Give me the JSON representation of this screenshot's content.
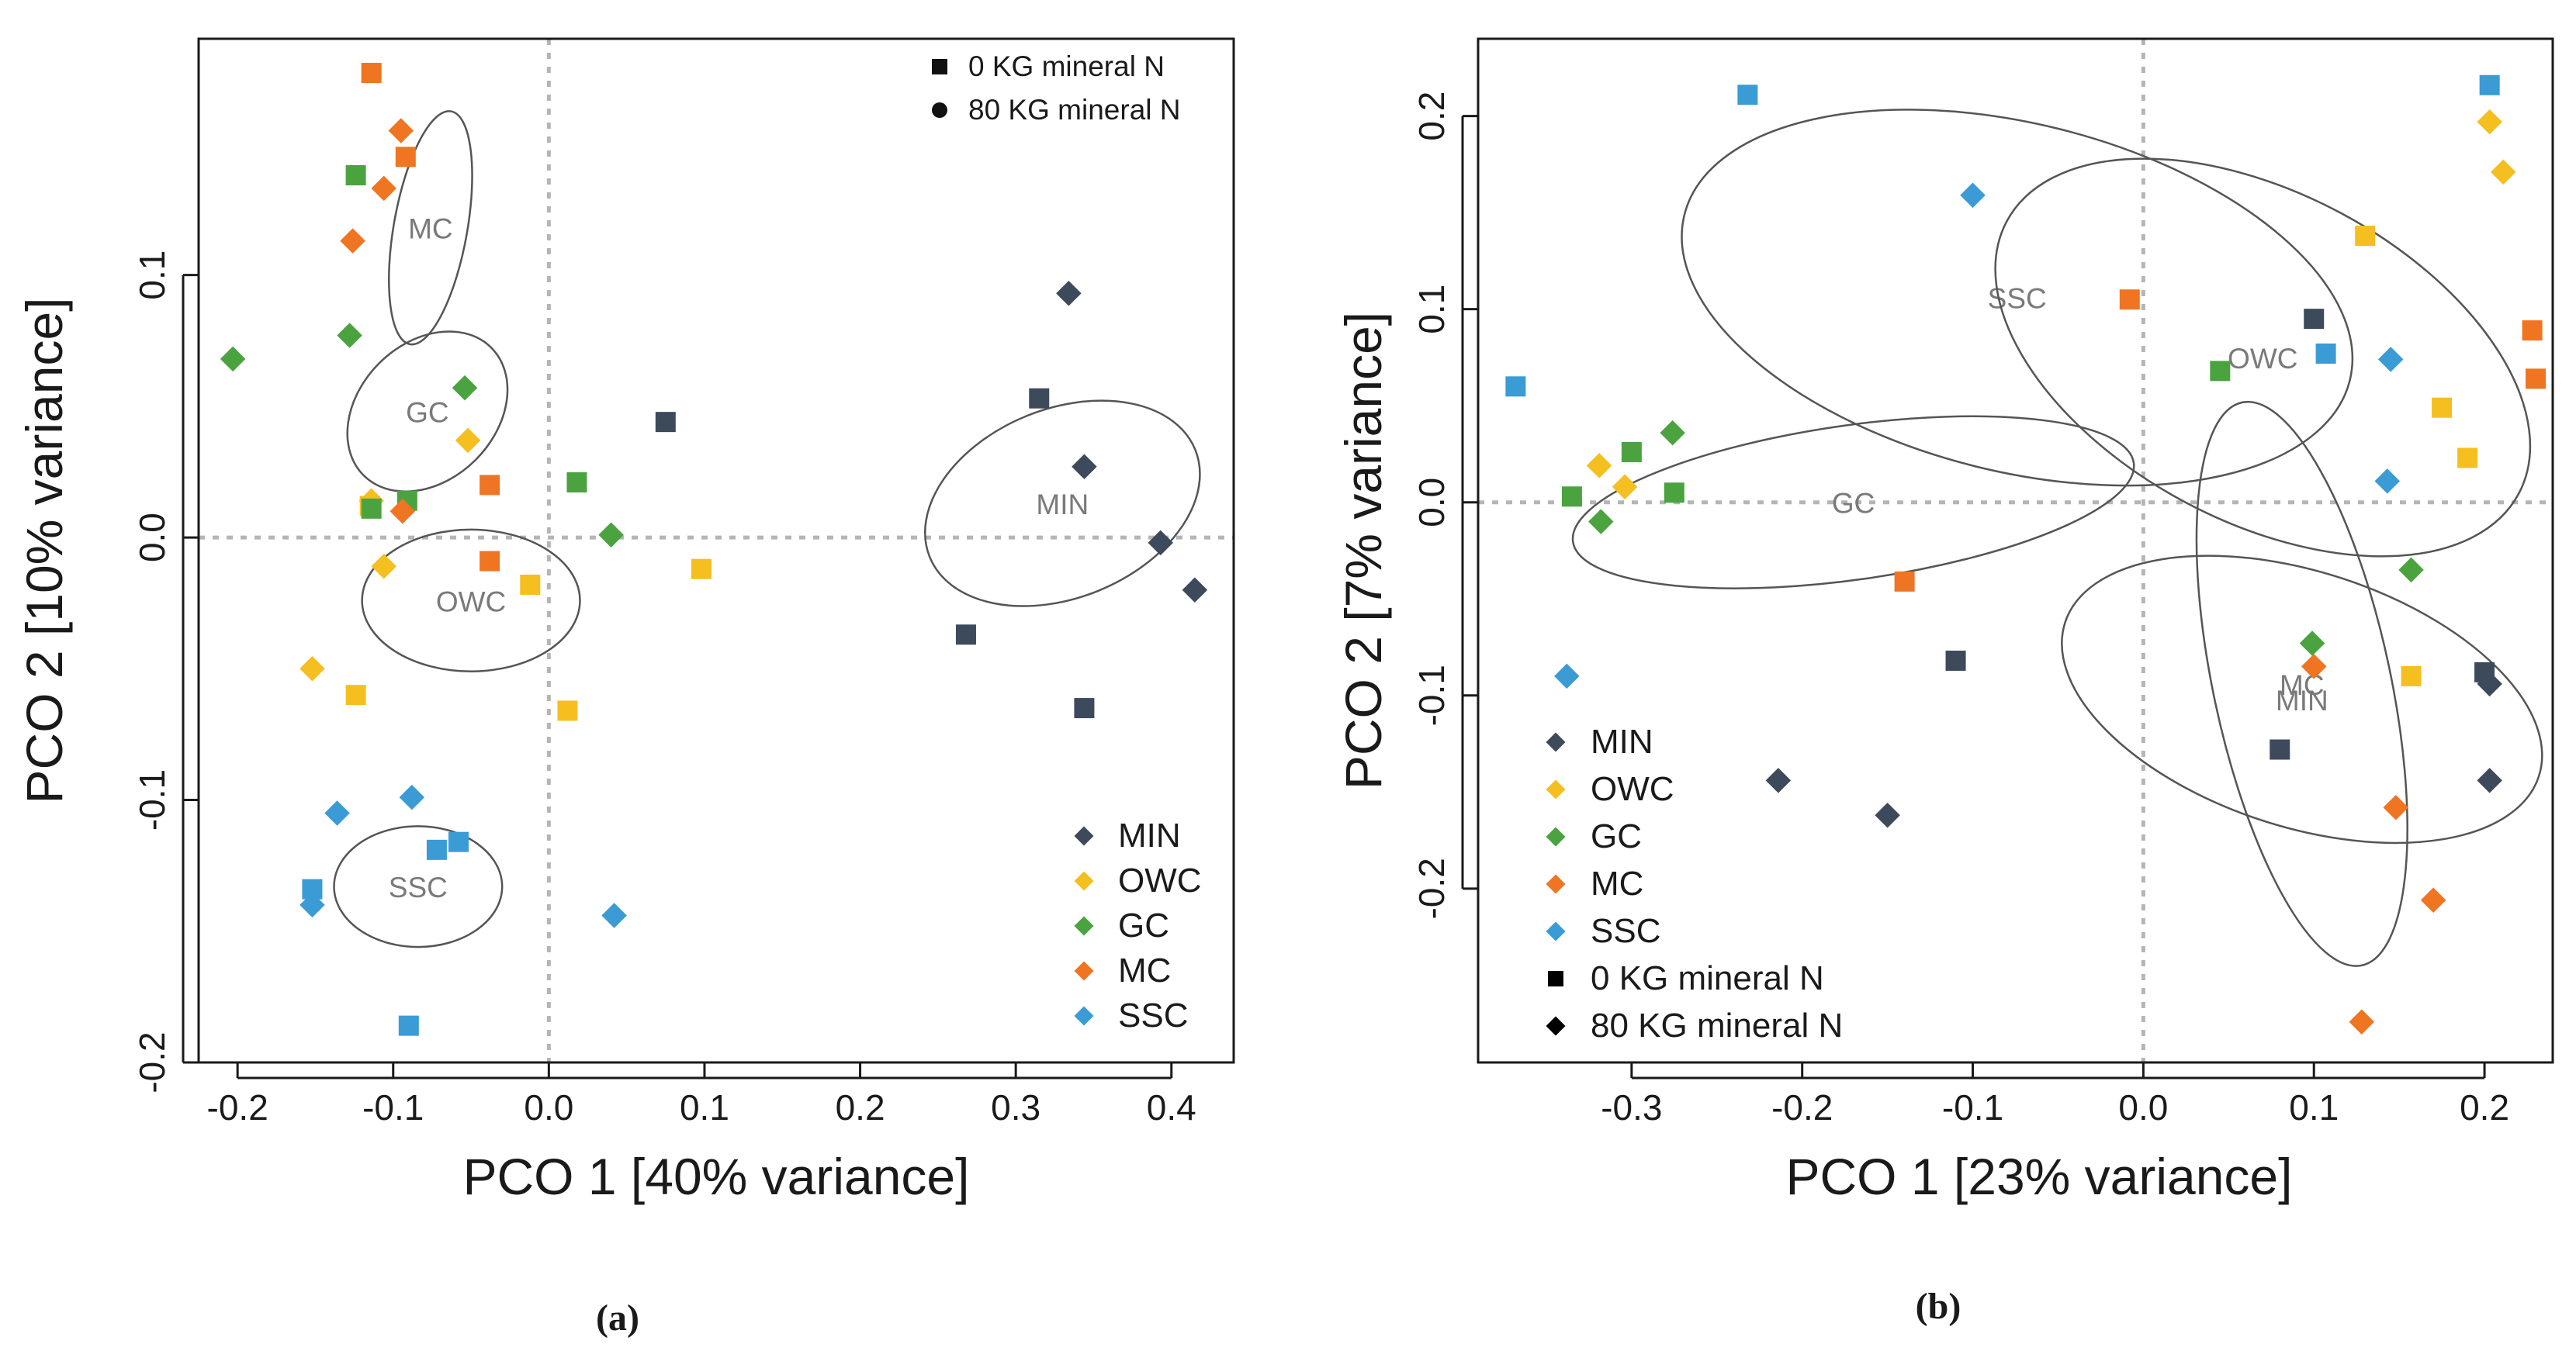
{
  "chart_data": [
    {
      "type": "scatter",
      "panel_label": "(a)",
      "xlabel": "PCO 1 [40% variance]",
      "ylabel": "PCO 2 [10% variance]",
      "xlim": [
        -0.225,
        0.44
      ],
      "ylim": [
        -0.2,
        0.19
      ],
      "xticks": [
        -0.2,
        -0.1,
        0.0,
        0.1,
        0.2,
        0.3,
        0.4
      ],
      "xtick_labels": [
        "-0.2",
        "-0.1",
        "0.0",
        "0.1",
        "0.2",
        "0.3",
        "0.4"
      ],
      "yticks": [
        -0.2,
        -0.1,
        0.0,
        0.1
      ],
      "ytick_labels": [
        "-0.2",
        "-0.1",
        "0.0",
        "0.1"
      ],
      "reference_lines": {
        "x": 0,
        "y": 0,
        "style": "dotted grey"
      },
      "legend_groups": {
        "placement": "bottom-right",
        "entries": [
          {
            "label": "MIN",
            "color": "#3d4a5c"
          },
          {
            "label": "OWC",
            "color": "#f5bf1f"
          },
          {
            "label": "GC",
            "color": "#4aa33f"
          },
          {
            "label": "MC",
            "color": "#ef7522"
          },
          {
            "label": "SSC",
            "color": "#3a9bd5"
          }
        ]
      },
      "legend_treatment": {
        "placement": "top-right",
        "entries": [
          {
            "label": "0 KG mineral N",
            "marker": "square"
          },
          {
            "label": "80 KG mineral N",
            "marker": "circle"
          }
        ]
      },
      "ellipses": [
        {
          "label": "MC",
          "cx": -0.076,
          "cy": 0.118,
          "rx": 0.076,
          "ry": 0.014,
          "angle_deg": -80
        },
        {
          "label": "GC",
          "cx": -0.078,
          "cy": 0.048,
          "rx": 0.058,
          "ry": 0.026,
          "angle_deg": -45
        },
        {
          "label": "OWC",
          "cx": -0.05,
          "cy": -0.024,
          "rx": 0.07,
          "ry": 0.027,
          "angle_deg": 0
        },
        {
          "label": "SSC",
          "cx": -0.084,
          "cy": -0.133,
          "rx": 0.054,
          "ry": 0.023,
          "angle_deg": 0
        },
        {
          "label": "MIN",
          "cx": 0.33,
          "cy": 0.013,
          "rx": 0.092,
          "ry": 0.036,
          "angle_deg": -22
        }
      ],
      "series": [
        {
          "name": "MIN",
          "color": "#3d4a5c",
          "points": [
            {
              "x": 0.075,
              "y": 0.044,
              "n": "0"
            },
            {
              "x": 0.315,
              "y": 0.053,
              "n": "0"
            },
            {
              "x": 0.268,
              "y": -0.037,
              "n": "0"
            },
            {
              "x": 0.344,
              "y": -0.065,
              "n": "0"
            },
            {
              "x": 0.334,
              "y": 0.093,
              "n": "80"
            },
            {
              "x": 0.344,
              "y": 0.027,
              "n": "80"
            },
            {
              "x": 0.393,
              "y": -0.002,
              "n": "80"
            },
            {
              "x": 0.415,
              "y": -0.02,
              "n": "80"
            }
          ]
        },
        {
          "name": "OWC",
          "color": "#f5bf1f",
          "points": [
            {
              "x": -0.115,
              "y": 0.012,
              "n": "0"
            },
            {
              "x": -0.012,
              "y": -0.018,
              "n": "0"
            },
            {
              "x": 0.098,
              "y": -0.012,
              "n": "0"
            },
            {
              "x": -0.124,
              "y": -0.06,
              "n": "0"
            },
            {
              "x": 0.012,
              "y": -0.066,
              "n": "0"
            },
            {
              "x": -0.052,
              "y": 0.037,
              "n": "80"
            },
            {
              "x": -0.114,
              "y": 0.014,
              "n": "80"
            },
            {
              "x": -0.106,
              "y": -0.011,
              "n": "80"
            },
            {
              "x": -0.152,
              "y": -0.05,
              "n": "80"
            }
          ]
        },
        {
          "name": "GC",
          "color": "#4aa33f",
          "points": [
            {
              "x": -0.124,
              "y": 0.138,
              "n": "0"
            },
            {
              "x": -0.091,
              "y": 0.014,
              "n": "0"
            },
            {
              "x": -0.114,
              "y": 0.011,
              "n": "0"
            },
            {
              "x": 0.018,
              "y": 0.021,
              "n": "0"
            },
            {
              "x": -0.203,
              "y": 0.068,
              "n": "80"
            },
            {
              "x": -0.128,
              "y": 0.077,
              "n": "80"
            },
            {
              "x": -0.054,
              "y": 0.057,
              "n": "80"
            },
            {
              "x": 0.04,
              "y": 0.001,
              "n": "80"
            }
          ]
        },
        {
          "name": "MC",
          "color": "#ef7522",
          "points": [
            {
              "x": -0.114,
              "y": 0.177,
              "n": "0"
            },
            {
              "x": -0.092,
              "y": 0.145,
              "n": "0"
            },
            {
              "x": -0.038,
              "y": 0.02,
              "n": "0"
            },
            {
              "x": -0.038,
              "y": -0.009,
              "n": "0"
            },
            {
              "x": -0.095,
              "y": 0.155,
              "n": "80"
            },
            {
              "x": -0.106,
              "y": 0.133,
              "n": "80"
            },
            {
              "x": -0.126,
              "y": 0.113,
              "n": "80"
            },
            {
              "x": -0.094,
              "y": 0.01,
              "n": "80"
            }
          ]
        },
        {
          "name": "SSC",
          "color": "#3a9bd5",
          "points": [
            {
              "x": -0.072,
              "y": -0.119,
              "n": "0"
            },
            {
              "x": -0.058,
              "y": -0.116,
              "n": "0"
            },
            {
              "x": -0.152,
              "y": -0.134,
              "n": "0"
            },
            {
              "x": -0.09,
              "y": -0.186,
              "n": "0"
            },
            {
              "x": -0.136,
              "y": -0.105,
              "n": "80"
            },
            {
              "x": -0.088,
              "y": -0.099,
              "n": "80"
            },
            {
              "x": -0.152,
              "y": -0.14,
              "n": "80"
            },
            {
              "x": 0.042,
              "y": -0.144,
              "n": "80"
            }
          ]
        }
      ]
    },
    {
      "type": "scatter",
      "panel_label": "(b)",
      "xlabel": "PCO 1 [23% variance]",
      "ylabel": "PCO 2 [7% variance]",
      "xlim": [
        -0.39,
        0.24
      ],
      "ylim": [
        -0.29,
        0.24
      ],
      "xticks": [
        -0.3,
        -0.2,
        -0.1,
        0.0,
        0.1,
        0.2
      ],
      "xtick_labels": [
        "-0.3",
        "-0.2",
        "-0.1",
        "0.0",
        "0.1",
        "0.2"
      ],
      "yticks": [
        -0.2,
        -0.1,
        0.0,
        0.1,
        0.2
      ],
      "ytick_labels": [
        "-0.2",
        "-0.1",
        "0.0",
        "0.1",
        "0.2"
      ],
      "reference_lines": {
        "x": 0,
        "y": 0,
        "style": "dotted grey"
      },
      "legend": {
        "placement": "bottom-left",
        "entries": [
          {
            "label": "MIN",
            "color": "#3d4a5c",
            "marker": "diamond"
          },
          {
            "label": "OWC",
            "color": "#f5bf1f",
            "marker": "diamond"
          },
          {
            "label": "GC",
            "color": "#4aa33f",
            "marker": "diamond"
          },
          {
            "label": "MC",
            "color": "#ef7522",
            "marker": "diamond"
          },
          {
            "label": "SSC",
            "color": "#3a9bd5",
            "marker": "diamond"
          },
          {
            "label": "0 KG mineral N",
            "color": "#000000",
            "marker": "square"
          },
          {
            "label": "80 KG mineral N",
            "color": "#000000",
            "marker": "diamond"
          }
        ]
      },
      "ellipses": [
        {
          "label": "SSC",
          "cx": -0.074,
          "cy": 0.106,
          "rx": 0.201,
          "ry": 0.09,
          "angle_deg": 14
        },
        {
          "label": "OWC",
          "cx": 0.07,
          "cy": 0.075,
          "rx": 0.17,
          "ry": 0.085,
          "angle_deg": 28
        },
        {
          "label": "GC",
          "cx": -0.17,
          "cy": 0.0,
          "rx": 0.166,
          "ry": 0.04,
          "angle_deg": -8
        },
        {
          "label": "MIN",
          "cx": 0.093,
          "cy": -0.102,
          "rx": 0.146,
          "ry": 0.066,
          "angle_deg": 18
        },
        {
          "label": "MC",
          "cx": 0.093,
          "cy": -0.094,
          "rx": 0.052,
          "ry": 0.149,
          "angle_deg": -12
        }
      ],
      "series": [
        {
          "name": "MIN",
          "color": "#3d4a5c",
          "points": [
            {
              "x": 0.1,
              "y": 0.095,
              "n": "0"
            },
            {
              "x": -0.11,
              "y": -0.082,
              "n": "0"
            },
            {
              "x": 0.2,
              "y": -0.088,
              "n": "0"
            },
            {
              "x": 0.08,
              "y": -0.128,
              "n": "0"
            },
            {
              "x": -0.214,
              "y": -0.144,
              "n": "80"
            },
            {
              "x": -0.15,
              "y": -0.162,
              "n": "80"
            },
            {
              "x": 0.203,
              "y": -0.094,
              "n": "80"
            },
            {
              "x": 0.203,
              "y": -0.144,
              "n": "80"
            }
          ]
        },
        {
          "name": "OWC",
          "color": "#f5bf1f",
          "points": [
            {
              "x": 0.13,
              "y": 0.138,
              "n": "0"
            },
            {
              "x": 0.175,
              "y": 0.049,
              "n": "0"
            },
            {
              "x": 0.19,
              "y": 0.023,
              "n": "0"
            },
            {
              "x": 0.157,
              "y": -0.09,
              "n": "0"
            },
            {
              "x": 0.203,
              "y": 0.197,
              "n": "80"
            },
            {
              "x": 0.211,
              "y": 0.171,
              "n": "80"
            },
            {
              "x": -0.319,
              "y": 0.019,
              "n": "80"
            },
            {
              "x": -0.304,
              "y": 0.008,
              "n": "80"
            }
          ]
        },
        {
          "name": "GC",
          "color": "#4aa33f",
          "points": [
            {
              "x": 0.045,
              "y": 0.068,
              "n": "0"
            },
            {
              "x": -0.3,
              "y": 0.026,
              "n": "0"
            },
            {
              "x": -0.275,
              "y": 0.005,
              "n": "0"
            },
            {
              "x": -0.335,
              "y": 0.003,
              "n": "0"
            },
            {
              "x": -0.276,
              "y": 0.036,
              "n": "80"
            },
            {
              "x": -0.318,
              "y": -0.01,
              "n": "80"
            },
            {
              "x": 0.157,
              "y": -0.035,
              "n": "80"
            },
            {
              "x": 0.099,
              "y": -0.073,
              "n": "80"
            }
          ]
        },
        {
          "name": "MC",
          "color": "#ef7522",
          "points": [
            {
              "x": -0.008,
              "y": 0.105,
              "n": "0"
            },
            {
              "x": 0.228,
              "y": 0.089,
              "n": "0"
            },
            {
              "x": 0.23,
              "y": 0.064,
              "n": "0"
            },
            {
              "x": -0.14,
              "y": -0.041,
              "n": "0"
            },
            {
              "x": 0.1,
              "y": -0.085,
              "n": "80"
            },
            {
              "x": 0.148,
              "y": -0.158,
              "n": "80"
            },
            {
              "x": 0.17,
              "y": -0.206,
              "n": "80"
            },
            {
              "x": 0.128,
              "y": -0.269,
              "n": "80"
            }
          ]
        },
        {
          "name": "SSC",
          "color": "#3a9bd5",
          "points": [
            {
              "x": -0.232,
              "y": 0.211,
              "n": "0"
            },
            {
              "x": 0.203,
              "y": 0.216,
              "n": "0"
            },
            {
              "x": -0.368,
              "y": 0.06,
              "n": "0"
            },
            {
              "x": 0.107,
              "y": 0.077,
              "n": "0"
            },
            {
              "x": -0.1,
              "y": 0.159,
              "n": "80"
            },
            {
              "x": 0.145,
              "y": 0.074,
              "n": "80"
            },
            {
              "x": 0.143,
              "y": 0.011,
              "n": "80"
            },
            {
              "x": -0.338,
              "y": -0.09,
              "n": "80"
            }
          ]
        }
      ]
    }
  ]
}
